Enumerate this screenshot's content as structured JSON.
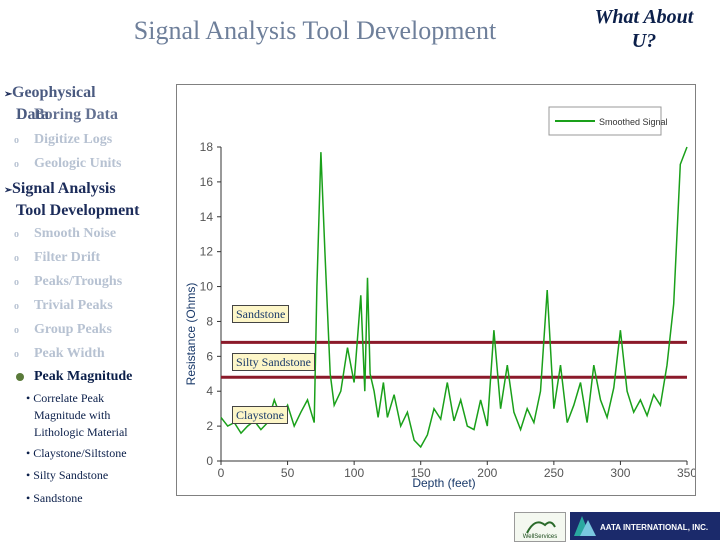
{
  "slide": {
    "title": "Signal Analysis Tool Development",
    "corner_title_line1": "What About",
    "corner_title_line2": "U?"
  },
  "menu": {
    "geophysical_line1": "Geophysical",
    "geophysical_line2": "Data",
    "overlap_text": "Boring Data",
    "digitize_logs": "Digitize Logs",
    "geologic_units": "Geologic Units",
    "signal_line1": "Signal Analysis",
    "signal_line2": "Tool Development",
    "sub_items": [
      "Smooth Noise",
      "Filter Drift",
      "Peaks/Troughs",
      "Trivial Peaks",
      "Group Peaks",
      "Peak Width"
    ],
    "peak_magnitude": "Peak Magnitude",
    "detail1_line1": "• Correlate Peak",
    "detail1_line2": "Magnitude with",
    "detail1_line3": "Lithologic Material",
    "detail2": "• Claystone/Siltstone",
    "detail3": "• Silty Sandstone",
    "detail4": "• Sandstone",
    "bullet_glyph": "o",
    "arrow_glyph": "➢"
  },
  "chart_data": {
    "type": "line",
    "xlabel": "Depth (feet)",
    "ylabel": "Resistance (Ohms)",
    "xlim": [
      0,
      350
    ],
    "ylim": [
      0,
      18
    ],
    "x_ticks": [
      "0",
      "50",
      "100",
      "150",
      "200",
      "250",
      "300",
      "350"
    ],
    "y_ticks": [
      "0",
      "2",
      "4",
      "6",
      "8",
      "10",
      "12",
      "14",
      "16",
      "18"
    ],
    "legend": "Smoothed Signal",
    "legend_position": "top-right",
    "series_color": "#1aa01a",
    "threshold_color": "#8b1a2a",
    "thresholds": [
      6.8,
      4.8
    ],
    "zone_labels": [
      "Sandstone",
      "Silty Sandstone",
      "Claystone"
    ],
    "x": [
      0,
      5,
      10,
      15,
      20,
      25,
      30,
      35,
      40,
      45,
      50,
      55,
      60,
      65,
      70,
      72,
      75,
      78,
      82,
      85,
      90,
      95,
      100,
      105,
      108,
      110,
      112,
      115,
      118,
      122,
      125,
      130,
      135,
      140,
      145,
      150,
      155,
      160,
      165,
      170,
      175,
      180,
      185,
      190,
      195,
      200,
      205,
      210,
      215,
      220,
      225,
      230,
      235,
      240,
      245,
      250,
      255,
      260,
      265,
      270,
      275,
      280,
      285,
      290,
      295,
      300,
      305,
      310,
      315,
      320,
      325,
      330,
      335,
      340,
      345,
      350
    ],
    "y": [
      2.5,
      2.0,
      2.2,
      1.6,
      2.0,
      2.3,
      1.8,
      2.2,
      3.5,
      2.5,
      3.2,
      2.0,
      2.8,
      3.5,
      2.2,
      10.0,
      17.7,
      12.0,
      5.0,
      3.2,
      4.0,
      6.5,
      4.5,
      9.5,
      4.0,
      10.5,
      5.0,
      4.0,
      2.5,
      4.5,
      2.5,
      3.8,
      2.0,
      2.8,
      1.2,
      0.8,
      1.5,
      3.0,
      2.4,
      4.5,
      2.3,
      3.5,
      2.0,
      1.8,
      3.5,
      2.0,
      7.5,
      3.0,
      5.5,
      2.8,
      1.8,
      3.0,
      2.2,
      4.0,
      9.8,
      3.0,
      5.5,
      2.2,
      3.2,
      4.5,
      2.2,
      5.5,
      3.5,
      2.5,
      4.2,
      7.5,
      4.0,
      2.8,
      3.5,
      2.6,
      3.8,
      3.2,
      5.5,
      9.0,
      17.0,
      18.0
    ]
  },
  "logos": {
    "left_text": "WellServices",
    "right_text": "AATA INTERNATIONAL, INC."
  }
}
